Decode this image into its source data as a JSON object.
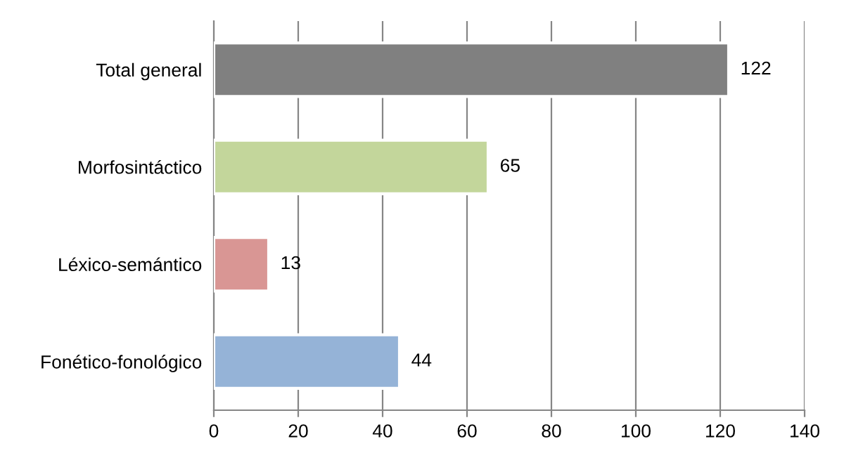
{
  "chart_data": {
    "type": "bar",
    "orientation": "horizontal",
    "categories": [
      "Total general",
      "Morfosintáctico",
      "Léxico-semántico",
      "Fonético-fonológico"
    ],
    "values": [
      122,
      65,
      13,
      44
    ],
    "colors": [
      "#808080",
      "#c3d69b",
      "#d99694",
      "#95b3d7"
    ],
    "xlim": [
      0,
      140
    ],
    "xticks": [
      0,
      20,
      40,
      60,
      80,
      100,
      120,
      140
    ],
    "grid": "x",
    "data_labels": true
  }
}
